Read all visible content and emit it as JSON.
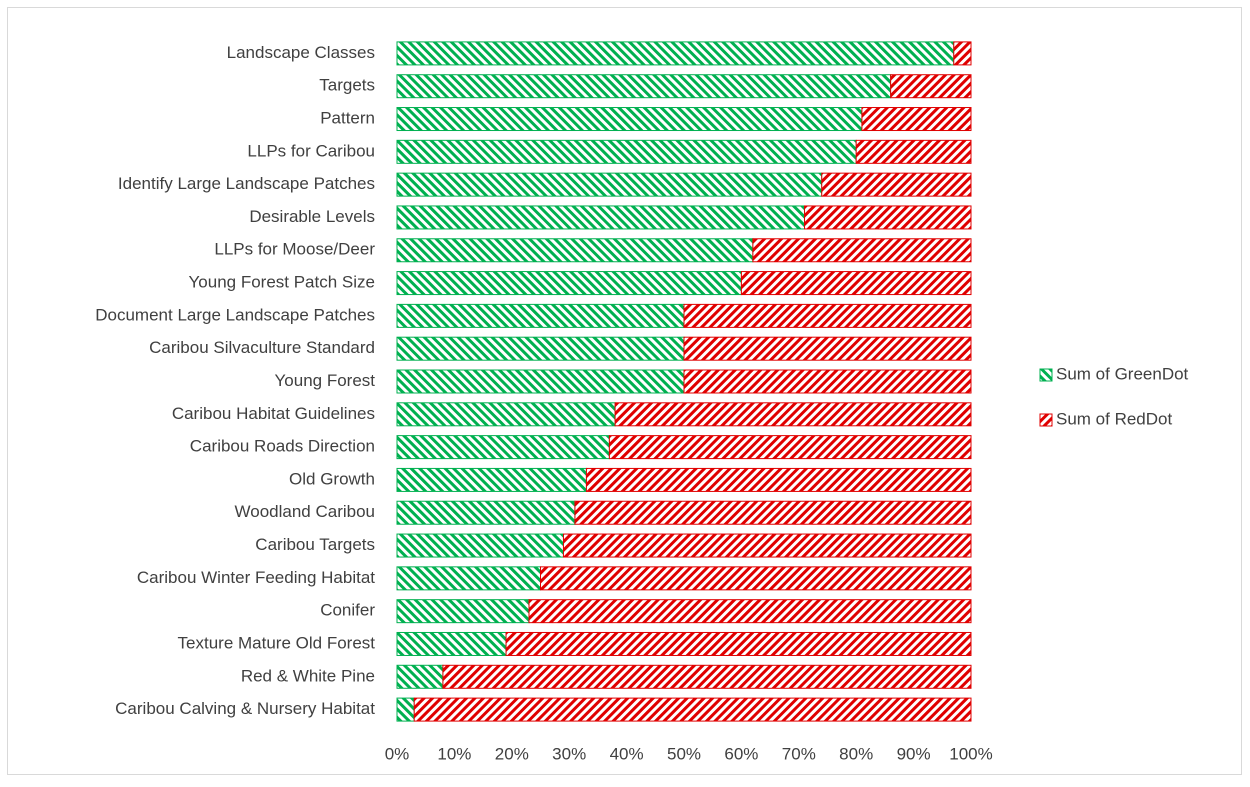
{
  "chart_data": {
    "type": "stacked_bar_horizontal",
    "categories": [
      "Landscape Classes",
      "Targets",
      "Pattern",
      "LLPs for Caribou",
      "Identify Large Landscape Patches",
      "Desirable Levels",
      "LLPs for Moose/Deer",
      "Young Forest Patch Size ",
      "Document Large Landscape Patches",
      "Caribou Silvaculture Standard",
      "Young Forest",
      "Caribou Habitat Guidelines",
      "Caribou Roads Direction",
      "Old Growth",
      "Woodland Caribou",
      "Caribou Targets",
      "Caribou Winter Feeding Habitat",
      "Conifer",
      "Texture Mature Old Forest",
      "Red & White Pine",
      "Caribou Calving & Nursery Habitat"
    ],
    "series": [
      {
        "name": "Sum of GreenDot",
        "color": "#00b050",
        "values": [
          97,
          86,
          81,
          80,
          74,
          71,
          62,
          60,
          50,
          50,
          50,
          38,
          37,
          33,
          31,
          29,
          25,
          23,
          19,
          8,
          3
        ]
      },
      {
        "name": "Sum of RedDot",
        "color": "#e00000",
        "values": [
          3,
          14,
          19,
          20,
          26,
          29,
          38,
          40,
          50,
          50,
          50,
          62,
          63,
          67,
          69,
          71,
          75,
          77,
          81,
          92,
          97
        ]
      }
    ],
    "xlim": [
      0,
      100
    ],
    "xticks": [
      {
        "value": 0,
        "label": "0%"
      },
      {
        "value": 10,
        "label": "10%"
      },
      {
        "value": 20,
        "label": "20%"
      },
      {
        "value": 30,
        "label": "30%"
      },
      {
        "value": 40,
        "label": "40%"
      },
      {
        "value": 50,
        "label": "50%"
      },
      {
        "value": 60,
        "label": "60%"
      },
      {
        "value": 70,
        "label": "70%"
      },
      {
        "value": 80,
        "label": "80%"
      },
      {
        "value": 90,
        "label": "90%"
      },
      {
        "value": 100,
        "label": "100%"
      }
    ],
    "legend": "right"
  }
}
